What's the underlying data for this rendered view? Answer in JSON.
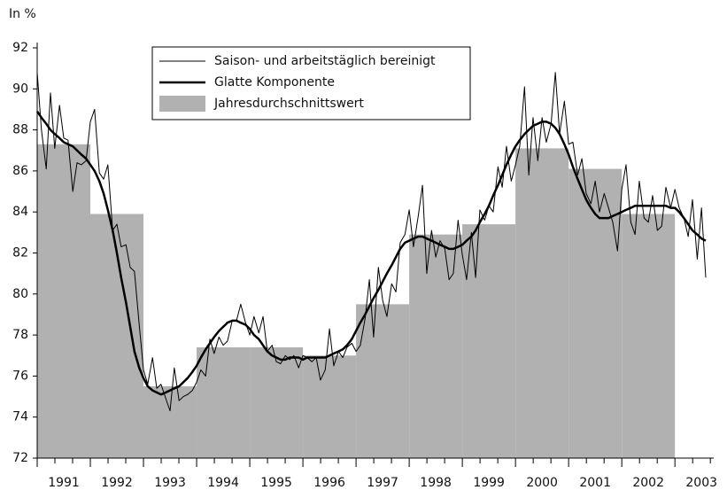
{
  "chart_data": {
    "type": "line",
    "ylabel": "In %",
    "ylim": [
      72,
      92
    ],
    "yticks": [
      72,
      74,
      76,
      78,
      80,
      82,
      84,
      86,
      88,
      90,
      92
    ],
    "xlim": [
      1991,
      2003.73
    ],
    "xticks": [
      {
        "value": 1991.5,
        "label": "1991"
      },
      {
        "value": 1992.5,
        "label": "1992"
      },
      {
        "value": 1993.5,
        "label": "1993"
      },
      {
        "value": 1994.5,
        "label": "1994"
      },
      {
        "value": 1995.5,
        "label": "1995"
      },
      {
        "value": 1996.5,
        "label": "1996"
      },
      {
        "value": 1997.5,
        "label": "1997"
      },
      {
        "value": 1998.5,
        "label": "1998"
      },
      {
        "value": 1999.5,
        "label": "1999"
      },
      {
        "value": 2000.5,
        "label": "2000"
      },
      {
        "value": 2001.5,
        "label": "2001"
      },
      {
        "value": 2002.5,
        "label": "2002"
      },
      {
        "value": 2003.5,
        "label": "2003"
      }
    ],
    "legend": "upper-left",
    "x": [
      1991.0,
      1991.08,
      1991.17,
      1991.25,
      1991.33,
      1991.42,
      1991.5,
      1991.58,
      1991.67,
      1991.75,
      1991.83,
      1991.92,
      1992.0,
      1992.08,
      1992.17,
      1992.25,
      1992.33,
      1992.42,
      1992.5,
      1992.58,
      1992.67,
      1992.75,
      1992.83,
      1992.92,
      1993.0,
      1993.08,
      1993.17,
      1993.25,
      1993.33,
      1993.42,
      1993.5,
      1993.58,
      1993.67,
      1993.75,
      1993.83,
      1993.92,
      1994.0,
      1994.08,
      1994.17,
      1994.25,
      1994.33,
      1994.42,
      1994.5,
      1994.58,
      1994.67,
      1994.75,
      1994.83,
      1994.92,
      1995.0,
      1995.08,
      1995.17,
      1995.25,
      1995.33,
      1995.42,
      1995.5,
      1995.58,
      1995.67,
      1995.75,
      1995.83,
      1995.92,
      1996.0,
      1996.08,
      1996.17,
      1996.25,
      1996.33,
      1996.42,
      1996.5,
      1996.58,
      1996.67,
      1996.75,
      1996.83,
      1996.92,
      1997.0,
      1997.08,
      1997.17,
      1997.25,
      1997.33,
      1997.42,
      1997.5,
      1997.58,
      1997.67,
      1997.75,
      1997.83,
      1997.92,
      1998.0,
      1998.08,
      1998.17,
      1998.25,
      1998.33,
      1998.42,
      1998.5,
      1998.58,
      1998.67,
      1998.75,
      1998.83,
      1998.92,
      1999.0,
      1999.08,
      1999.17,
      1999.25,
      1999.33,
      1999.42,
      1999.5,
      1999.58,
      1999.67,
      1999.75,
      1999.83,
      1999.92,
      2000.0,
      2000.08,
      2000.17,
      2000.25,
      2000.33,
      2000.42,
      2000.5,
      2000.58,
      2000.67,
      2000.75,
      2000.83,
      2000.92,
      2001.0,
      2001.08,
      2001.17,
      2001.25,
      2001.33,
      2001.42,
      2001.5,
      2001.58,
      2001.67,
      2001.75,
      2001.83,
      2001.92,
      2002.0,
      2002.08,
      2002.17,
      2002.25,
      2002.33,
      2002.42,
      2002.5,
      2002.58,
      2002.67,
      2002.75,
      2002.83,
      2002.92,
      2003.0,
      2003.08,
      2003.17,
      2003.25,
      2003.33,
      2003.42,
      2003.5,
      2003.58
    ],
    "series": [
      {
        "name": "Saison- und arbeitstäglich bereinigt",
        "color": "#000000",
        "width": 1,
        "values": [
          90.8,
          88.0,
          86.1,
          89.8,
          87.1,
          89.2,
          87.6,
          87.5,
          85.0,
          86.4,
          86.3,
          86.5,
          88.4,
          89.0,
          85.9,
          85.6,
          86.3,
          83.1,
          83.4,
          82.3,
          82.4,
          81.3,
          81.1,
          78.5,
          76.3,
          75.6,
          76.9,
          75.4,
          75.6,
          74.9,
          74.3,
          76.4,
          74.8,
          75.0,
          75.1,
          75.3,
          75.7,
          76.3,
          76.0,
          77.8,
          77.1,
          77.9,
          77.5,
          77.7,
          78.7,
          78.7,
          79.5,
          78.6,
          78.0,
          78.9,
          78.1,
          78.9,
          77.2,
          77.5,
          76.7,
          76.6,
          77.0,
          76.8,
          77.0,
          76.4,
          77.0,
          76.9,
          76.7,
          76.9,
          75.8,
          76.3,
          78.3,
          76.5,
          77.2,
          76.9,
          77.4,
          77.6,
          77.2,
          77.5,
          78.8,
          80.7,
          77.9,
          81.3,
          79.7,
          78.9,
          80.5,
          80.1,
          82.5,
          82.9,
          84.1,
          82.3,
          83.8,
          85.3,
          81.0,
          83.1,
          81.8,
          82.6,
          82.2,
          80.7,
          81.0,
          83.6,
          81.9,
          80.7,
          83.0,
          80.8,
          84.1,
          83.6,
          84.3,
          84.0,
          86.2,
          85.2,
          87.2,
          85.5,
          86.3,
          87.2,
          90.1,
          85.8,
          88.6,
          86.5,
          88.6,
          87.4,
          88.3,
          90.8,
          87.8,
          89.4,
          87.3,
          87.4,
          85.8,
          86.6,
          84.9,
          84.4,
          85.5,
          84.0,
          84.9,
          84.2,
          83.5,
          82.1,
          85.1,
          86.3,
          83.5,
          82.9,
          85.5,
          83.7,
          83.5,
          84.8,
          83.1,
          83.3,
          85.2,
          84.2,
          85.1,
          84.2,
          83.7,
          82.8,
          84.6,
          81.7,
          84.2,
          80.8
        ]
      },
      {
        "name": "Glatte Komponente",
        "color": "#000000",
        "width": 2.5,
        "values": [
          88.9,
          88.6,
          88.3,
          88.0,
          87.8,
          87.6,
          87.4,
          87.3,
          87.2,
          87.0,
          86.8,
          86.6,
          86.3,
          86.0,
          85.5,
          84.9,
          84.1,
          83.1,
          82.0,
          80.8,
          79.6,
          78.4,
          77.2,
          76.4,
          75.9,
          75.5,
          75.3,
          75.2,
          75.1,
          75.2,
          75.3,
          75.4,
          75.5,
          75.7,
          75.9,
          76.2,
          76.5,
          76.9,
          77.3,
          77.6,
          77.9,
          78.2,
          78.4,
          78.6,
          78.7,
          78.7,
          78.6,
          78.5,
          78.3,
          78.0,
          77.8,
          77.5,
          77.2,
          77.0,
          76.9,
          76.8,
          76.8,
          76.9,
          76.9,
          76.9,
          76.8,
          76.9,
          76.9,
          76.9,
          76.9,
          76.9,
          77.0,
          77.1,
          77.2,
          77.3,
          77.5,
          77.8,
          78.2,
          78.6,
          79.0,
          79.4,
          79.8,
          80.2,
          80.6,
          81.0,
          81.4,
          81.8,
          82.2,
          82.5,
          82.6,
          82.7,
          82.8,
          82.8,
          82.7,
          82.6,
          82.5,
          82.4,
          82.3,
          82.2,
          82.2,
          82.3,
          82.4,
          82.6,
          82.8,
          83.1,
          83.5,
          83.9,
          84.3,
          84.8,
          85.3,
          85.8,
          86.3,
          86.8,
          87.2,
          87.5,
          87.8,
          88.0,
          88.2,
          88.3,
          88.4,
          88.4,
          88.3,
          88.1,
          87.8,
          87.3,
          86.8,
          86.2,
          85.6,
          85.1,
          84.6,
          84.2,
          83.9,
          83.7,
          83.7,
          83.7,
          83.8,
          83.9,
          84.0,
          84.1,
          84.2,
          84.3,
          84.3,
          84.3,
          84.3,
          84.3,
          84.3,
          84.3,
          84.3,
          84.2,
          84.2,
          84.0,
          83.7,
          83.4,
          83.1,
          82.9,
          82.7,
          82.6
        ]
      },
      {
        "name": "Jahresdurchschnittswert",
        "color": "#b1b1b1",
        "kind": "bar",
        "x": [
          1991,
          1992,
          1993,
          1994,
          1995,
          1996,
          1997,
          1998,
          1999,
          2000,
          2001,
          2002
        ],
        "values": [
          87.3,
          83.9,
          75.5,
          77.4,
          77.4,
          77.0,
          79.5,
          82.9,
          83.4,
          87.1,
          86.1,
          83.9
        ]
      }
    ]
  }
}
